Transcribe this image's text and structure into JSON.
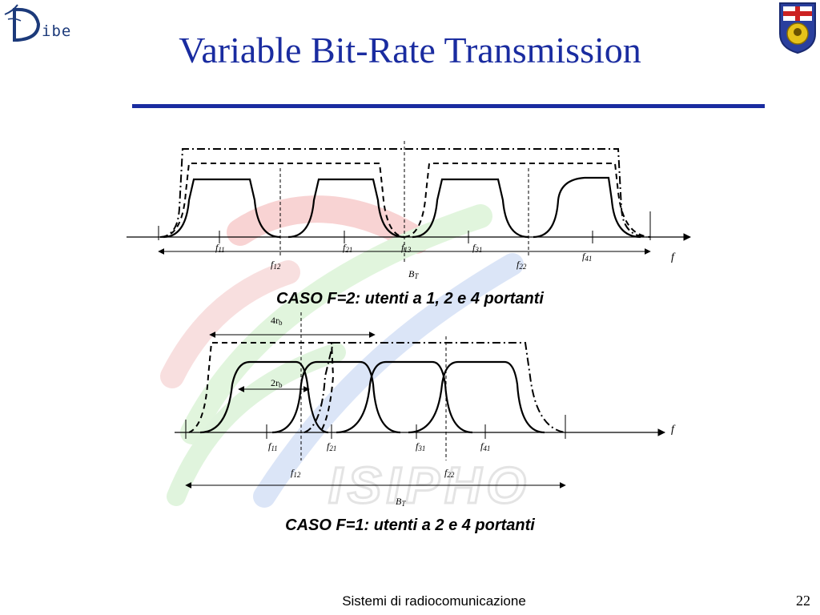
{
  "logo": {
    "text": "ibe",
    "letter": "D"
  },
  "title": "Variable Bit-Rate Transmission",
  "watermark_text": "ISIPHO",
  "diagram_top": {
    "labels": {
      "f11": [
        "f",
        "11"
      ],
      "f21": [
        "f",
        "21"
      ],
      "f13": [
        "f",
        "13"
      ],
      "f31": [
        "f",
        "31"
      ],
      "f41": [
        "f",
        "41"
      ],
      "f12": [
        "f",
        "12"
      ],
      "f22": [
        "f",
        "22"
      ],
      "BT": [
        "B",
        "T"
      ],
      "f": "f"
    },
    "caption": "CASO F=2: utenti a 1, 2 e 4 portanti"
  },
  "diagram_bottom": {
    "labels": {
      "r4": [
        "4r",
        "b"
      ],
      "r2": [
        "2r",
        "b"
      ],
      "f11": [
        "f",
        "11"
      ],
      "f21": [
        "f",
        "21"
      ],
      "f31": [
        "f",
        "31"
      ],
      "f41": [
        "f",
        "41"
      ],
      "f12": [
        "f",
        "12"
      ],
      "f22": [
        "f",
        "22"
      ],
      "BT": [
        "B",
        "T"
      ],
      "f": "f"
    },
    "caption": "CASO F=1: utenti a 2 e 4 portanti"
  },
  "footer": {
    "text": "Sistemi di radiocomunicazione",
    "page": "22"
  }
}
